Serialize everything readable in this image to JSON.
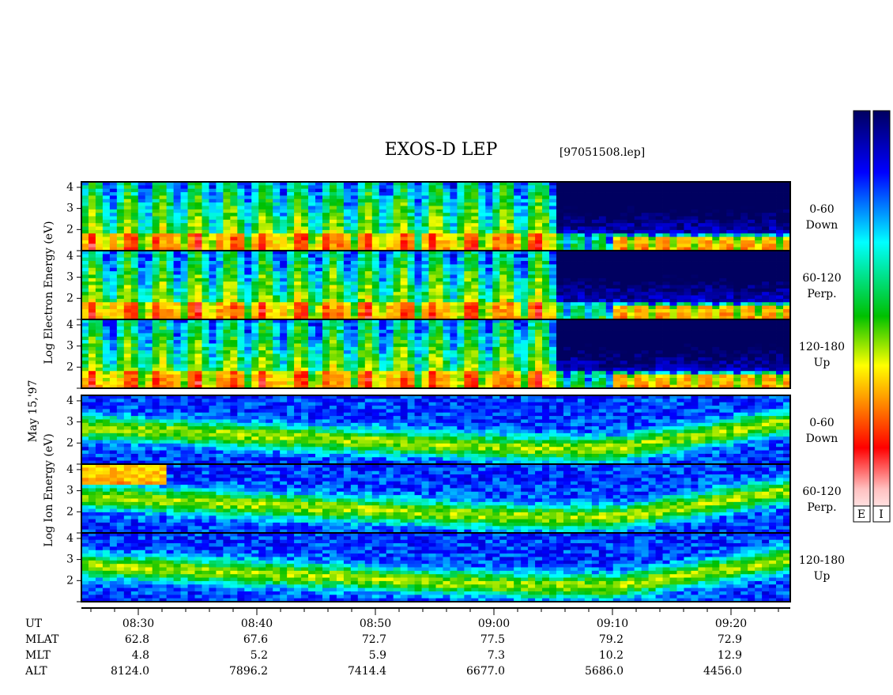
{
  "title": "EXOS-D LEP",
  "file": "[97051508.lep]",
  "date": "May 15,'97",
  "chart_data": [
    {
      "type": "spectrogram",
      "species_label": "Log Electron Energy (eV)",
      "ylim": [
        1,
        4.26
      ],
      "yticks": [
        2,
        3,
        4
      ],
      "panels": [
        {
          "angle": "0-60",
          "direction": "Down"
        },
        {
          "angle": "60-120",
          "direction": "Perp."
        },
        {
          "angle": "120-180",
          "direction": "Up"
        }
      ]
    },
    {
      "type": "spectrogram",
      "species_label": "Log Ion Energy (eV)",
      "ylim": [
        1,
        4.26
      ],
      "yticks": [
        2,
        3,
        4
      ],
      "panels": [
        {
          "angle": "0-60",
          "direction": "Down"
        },
        {
          "angle": "60-120",
          "direction": "Perp."
        },
        {
          "angle": "120-180",
          "direction": "Up"
        }
      ]
    }
  ],
  "time_axis": {
    "rows": [
      {
        "label": "UT",
        "values": [
          "08:30",
          "08:40",
          "08:50",
          "09:00",
          "09:10",
          "09:20"
        ]
      },
      {
        "label": "MLAT",
        "values": [
          62.8,
          67.6,
          72.7,
          77.5,
          79.2,
          72.9
        ]
      },
      {
        "label": "MLT",
        "values": [
          4.8,
          5.2,
          5.9,
          7.3,
          10.2,
          12.9
        ]
      },
      {
        "label": "ALT",
        "values": [
          {
            "value": 8124,
            "label": "8124.0"
          },
          7896.2,
          7414.4,
          {
            "value": 6677,
            "label": "6677.0"
          },
          {
            "value": 5686,
            "label": "5686.0"
          },
          {
            "value": 4456,
            "label": "4456.0"
          }
        ]
      }
    ]
  },
  "colorbar_labels": [
    "E",
    "I"
  ]
}
